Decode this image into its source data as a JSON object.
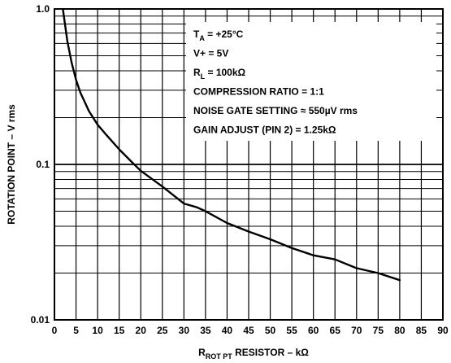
{
  "chart_data": {
    "type": "line",
    "title": "",
    "xlabel": {
      "main": "R",
      "sub": "ROT PT",
      "rest": " RESISTOR – kΩ"
    },
    "ylabel": "ROTATION POINT – V rms",
    "x_ticks": [
      "0",
      "5",
      "10",
      "15",
      "20",
      "25",
      "30",
      "35",
      "40",
      "45",
      "50",
      "55",
      "60",
      "65",
      "70",
      "75",
      "80",
      "85",
      "90"
    ],
    "y_ticks": [
      "1.0",
      "0.1",
      "0.01"
    ],
    "xlim": [
      0,
      90
    ],
    "ylim": [
      0.01,
      1.0
    ],
    "y_scale": "log",
    "grid": true,
    "annotations": [
      {
        "main": "T",
        "sub": "A",
        "rest": " = +25°C"
      },
      {
        "main": "V+ = 5V",
        "sub": "",
        "rest": ""
      },
      {
        "main": "R",
        "sub": "L",
        "rest": " = 100kΩ"
      },
      {
        "main": "COMPRESSION RATIO = 1:1",
        "sub": "",
        "rest": ""
      },
      {
        "main": "NOISE GATE SETTING ≈ 550µV rms",
        "sub": "",
        "rest": ""
      },
      {
        "main": "GAIN ADJUST (PIN 2) = 1.25kΩ",
        "sub": "",
        "rest": ""
      }
    ],
    "series": [
      {
        "x": [
          2,
          3,
          4,
          5,
          6,
          8,
          10,
          12,
          15,
          18,
          20,
          25,
          28,
          30,
          33,
          35,
          40,
          45,
          50,
          55,
          60,
          65,
          70,
          75,
          80
        ],
        "y": [
          0.98,
          0.62,
          0.45,
          0.35,
          0.29,
          0.22,
          0.18,
          0.155,
          0.125,
          0.103,
          0.091,
          0.072,
          0.062,
          0.056,
          0.053,
          0.05,
          0.042,
          0.037,
          0.033,
          0.029,
          0.026,
          0.0245,
          0.0215,
          0.02,
          0.018
        ]
      }
    ]
  }
}
